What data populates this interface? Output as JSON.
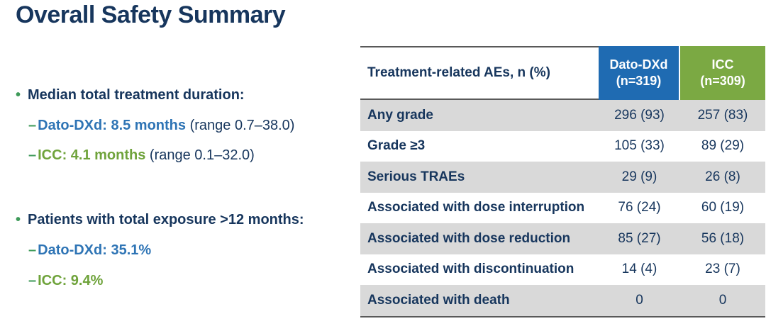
{
  "title": "Overall Safety Summary",
  "bullets": {
    "marker": "•",
    "group1": {
      "heading": "Median total treatment duration:",
      "item1": {
        "dash": "–",
        "text": "Dato-DXd: 8.5 months",
        "range": " (range 0.7–38.0)"
      },
      "item2": {
        "dash": "–",
        "text": "ICC: 4.1 months",
        "range": " (range 0.1–32.0)"
      }
    },
    "group2": {
      "heading": "Patients with total exposure >12 months:",
      "item1": {
        "dash": "–",
        "text": "Dato-DXd: 35.1%"
      },
      "item2": {
        "dash": "–",
        "text": "ICC: 9.4%"
      }
    }
  },
  "table": {
    "col_header_label": "Treatment-related AEs, n (%)",
    "col_dato": {
      "line1": "Dato-DXd",
      "line2": "(n=319)"
    },
    "col_icc": {
      "line1": "ICC",
      "line2": "(n=309)"
    },
    "rows": [
      {
        "label": "Any grade",
        "dato": "296 (93)",
        "icc": "257 (83)"
      },
      {
        "label": "Grade ≥3",
        "dato": "105 (33)",
        "icc": "89 (29)"
      },
      {
        "label": "Serious TRAEs",
        "dato": "29 (9)",
        "icc": "26 (8)"
      },
      {
        "label": "Associated with dose interruption",
        "dato": "76 (24)",
        "icc": "60 (19)"
      },
      {
        "label": "Associated with dose reduction",
        "dato": "85 (27)",
        "icc": "56 (18)"
      },
      {
        "label": "Associated with discontinuation",
        "dato": "14 (4)",
        "icc": "23 (7)"
      },
      {
        "label": "Associated with death",
        "dato": "0",
        "icc": "0"
      }
    ]
  },
  "colors": {
    "navy_text": "#17365D",
    "blue_text": "#2E74B5",
    "green_text": "#6FA33B",
    "bullet_green": "#3E9A59",
    "header_blue_bg": "#1F6BB2",
    "header_green_bg": "#7BA943",
    "row_stripe_gray": "#D9D9D9",
    "table_border_gray": "#595959"
  }
}
